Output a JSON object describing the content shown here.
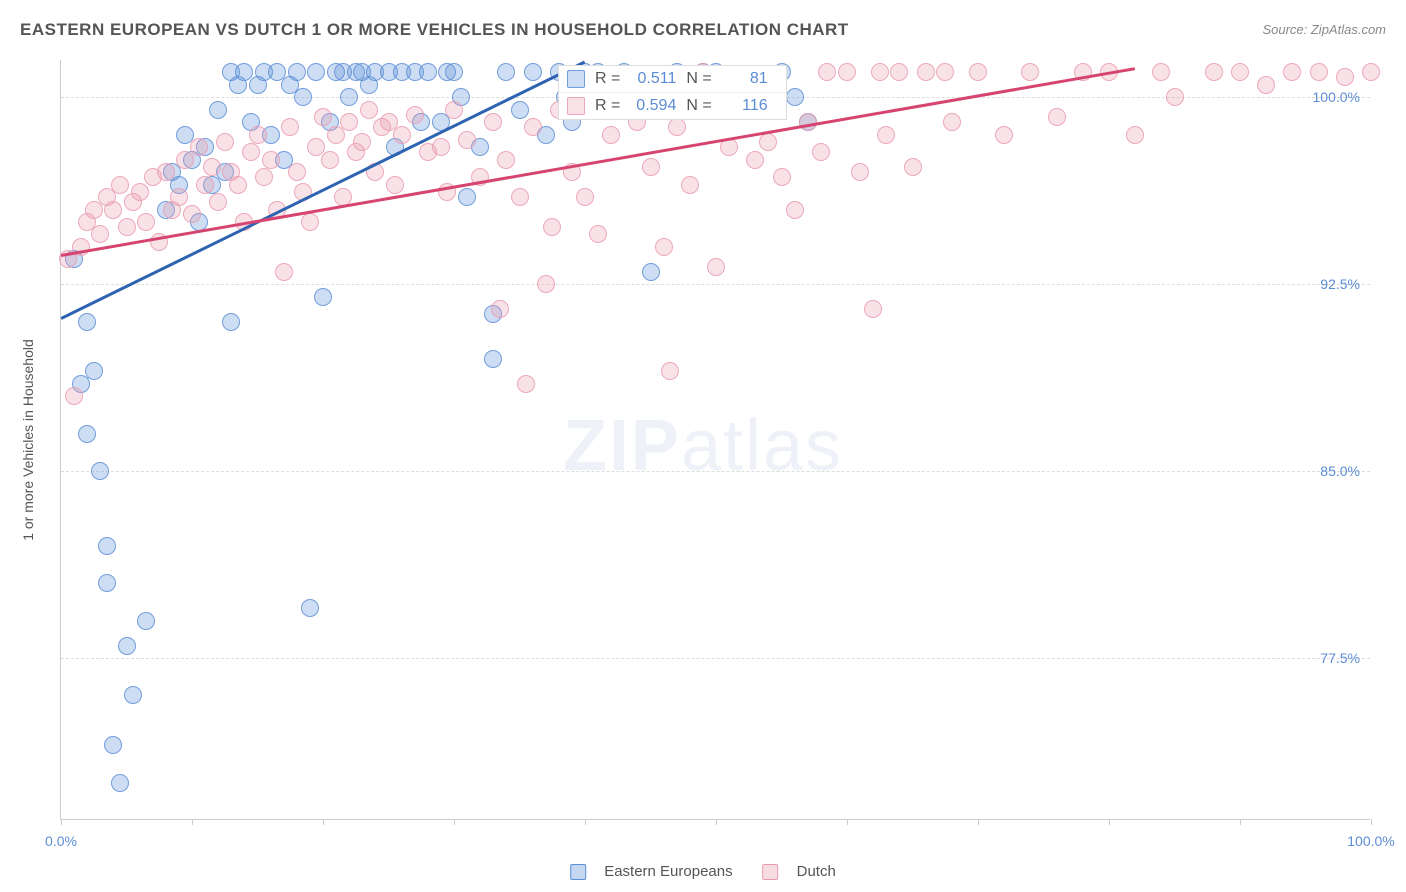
{
  "title": "EASTERN EUROPEAN VS DUTCH 1 OR MORE VEHICLES IN HOUSEHOLD CORRELATION CHART",
  "source_label": "Source: ZipAtlas.com",
  "y_axis_label": "1 or more Vehicles in Household",
  "watermark_bold": "ZIP",
  "watermark_light": "atlas",
  "chart": {
    "type": "scatter",
    "xlim": [
      0,
      100
    ],
    "ylim": [
      71,
      101.5
    ],
    "y_ticks": [
      77.5,
      85.0,
      92.5,
      100.0
    ],
    "y_tick_labels": [
      "77.5%",
      "85.0%",
      "92.5%",
      "100.0%"
    ],
    "x_ticks": [
      0,
      10,
      20,
      30,
      40,
      50,
      60,
      70,
      80,
      90,
      100
    ],
    "x_tick_labels_shown": {
      "0": "0.0%",
      "100": "100.0%"
    },
    "background_color": "#ffffff",
    "grid_color": "#dddddd",
    "axis_color": "#cccccc",
    "tick_label_color": "#5b8dd6",
    "point_radius": 9,
    "point_opacity": 0.45,
    "series": [
      {
        "name": "Eastern Europeans",
        "color": "#5b8dd6",
        "fill": "rgba(91,141,214,0.30)",
        "stroke": "rgba(91,141,214,0.8)",
        "R": "0.511",
        "N": "81",
        "trend": {
          "x1": 0,
          "y1": 91.2,
          "x2": 40,
          "y2": 101.5,
          "color": "#2d63b0",
          "width": 2.5
        },
        "points": [
          [
            1,
            93.5
          ],
          [
            1.5,
            88.5
          ],
          [
            2,
            91
          ],
          [
            2,
            86.5
          ],
          [
            2.5,
            89
          ],
          [
            3,
            85
          ],
          [
            3.5,
            82
          ],
          [
            3.5,
            80.5
          ],
          [
            4,
            74
          ],
          [
            4.5,
            72.5
          ],
          [
            5,
            78
          ],
          [
            5.5,
            76
          ],
          [
            6.5,
            79
          ],
          [
            8,
            95.5
          ],
          [
            8.5,
            97
          ],
          [
            9,
            96.5
          ],
          [
            9.5,
            98.5
          ],
          [
            10,
            97.5
          ],
          [
            10.5,
            95
          ],
          [
            11,
            98
          ],
          [
            11.5,
            96.5
          ],
          [
            12,
            99.5
          ],
          [
            12.5,
            97
          ],
          [
            13,
            91
          ],
          [
            13,
            101
          ],
          [
            13.5,
            100.5
          ],
          [
            14,
            101
          ],
          [
            14.5,
            99
          ],
          [
            15,
            100.5
          ],
          [
            15.5,
            101
          ],
          [
            16,
            98.5
          ],
          [
            16.5,
            101
          ],
          [
            17,
            97.5
          ],
          [
            17.5,
            100.5
          ],
          [
            18,
            101
          ],
          [
            18.5,
            100
          ],
          [
            19,
            79.5
          ],
          [
            19.5,
            101
          ],
          [
            20,
            92
          ],
          [
            20.5,
            99
          ],
          [
            21,
            101
          ],
          [
            21.5,
            101
          ],
          [
            22,
            100
          ],
          [
            22.5,
            101
          ],
          [
            23,
            101
          ],
          [
            23.5,
            100.5
          ],
          [
            24,
            101
          ],
          [
            25,
            101
          ],
          [
            25.5,
            98
          ],
          [
            26,
            101
          ],
          [
            27,
            101
          ],
          [
            27.5,
            99
          ],
          [
            28,
            101
          ],
          [
            29,
            99
          ],
          [
            29.5,
            101
          ],
          [
            30,
            101
          ],
          [
            30.5,
            100
          ],
          [
            31,
            96
          ],
          [
            32,
            98
          ],
          [
            33,
            89.5
          ],
          [
            33,
            91.3
          ],
          [
            34,
            101
          ],
          [
            35,
            99.5
          ],
          [
            36,
            101
          ],
          [
            37,
            98.5
          ],
          [
            38,
            101
          ],
          [
            38.5,
            100
          ],
          [
            39,
            99
          ],
          [
            40,
            101
          ],
          [
            41,
            101
          ],
          [
            42,
            100.5
          ],
          [
            43,
            101
          ],
          [
            45,
            93
          ],
          [
            47,
            101
          ],
          [
            49,
            101
          ],
          [
            49,
            100.5
          ],
          [
            50,
            101
          ],
          [
            50.5,
            100
          ],
          [
            55,
            101
          ],
          [
            56,
            100
          ],
          [
            57,
            99
          ]
        ]
      },
      {
        "name": "Dutch",
        "color": "#e89bb0",
        "fill": "rgba(232,155,176,0.30)",
        "stroke": "rgba(232,155,176,0.8)",
        "R": "0.594",
        "N": "116",
        "trend": {
          "x1": 0,
          "y1": 93.7,
          "x2": 82,
          "y2": 101.2,
          "color": "#d6456f",
          "width": 2.5
        },
        "points": [
          [
            0.5,
            93.5
          ],
          [
            1,
            88
          ],
          [
            1.5,
            94
          ],
          [
            2,
            95
          ],
          [
            2.5,
            95.5
          ],
          [
            3,
            94.5
          ],
          [
            3.5,
            96
          ],
          [
            4,
            95.5
          ],
          [
            4.5,
            96.5
          ],
          [
            5,
            94.8
          ],
          [
            5.5,
            95.8
          ],
          [
            6,
            96.2
          ],
          [
            6.5,
            95
          ],
          [
            7,
            96.8
          ],
          [
            7.5,
            94.2
          ],
          [
            8,
            97
          ],
          [
            8.5,
            95.5
          ],
          [
            9,
            96
          ],
          [
            9.5,
            97.5
          ],
          [
            10,
            95.3
          ],
          [
            10.5,
            98
          ],
          [
            11,
            96.5
          ],
          [
            11.5,
            97.2
          ],
          [
            12,
            95.8
          ],
          [
            12.5,
            98.2
          ],
          [
            13,
            97
          ],
          [
            13.5,
            96.5
          ],
          [
            14,
            95
          ],
          [
            14.5,
            97.8
          ],
          [
            15,
            98.5
          ],
          [
            15.5,
            96.8
          ],
          [
            16,
            97.5
          ],
          [
            16.5,
            95.5
          ],
          [
            17,
            93
          ],
          [
            17.5,
            98.8
          ],
          [
            18,
            97
          ],
          [
            18.5,
            96.2
          ],
          [
            19,
            95
          ],
          [
            19.5,
            98
          ],
          [
            20,
            99.2
          ],
          [
            20.5,
            97.5
          ],
          [
            21,
            98.5
          ],
          [
            21.5,
            96
          ],
          [
            22,
            99
          ],
          [
            22.5,
            97.8
          ],
          [
            23,
            98.2
          ],
          [
            23.5,
            99.5
          ],
          [
            24,
            97
          ],
          [
            24.5,
            98.8
          ],
          [
            25,
            99
          ],
          [
            25.5,
            96.5
          ],
          [
            26,
            98.5
          ],
          [
            27,
            99.3
          ],
          [
            28,
            97.8
          ],
          [
            29,
            98
          ],
          [
            29.5,
            96.2
          ],
          [
            30,
            99.5
          ],
          [
            31,
            98.3
          ],
          [
            32,
            96.8
          ],
          [
            33,
            99
          ],
          [
            33.5,
            91.5
          ],
          [
            34,
            97.5
          ],
          [
            35,
            96
          ],
          [
            35.5,
            88.5
          ],
          [
            36,
            98.8
          ],
          [
            37,
            92.5
          ],
          [
            37.5,
            94.8
          ],
          [
            38,
            99.5
          ],
          [
            39,
            97
          ],
          [
            40,
            96
          ],
          [
            41,
            94.5
          ],
          [
            42,
            98.5
          ],
          [
            43,
            99.8
          ],
          [
            44,
            99
          ],
          [
            45,
            97.2
          ],
          [
            46,
            94
          ],
          [
            46.5,
            89
          ],
          [
            47,
            98.8
          ],
          [
            48,
            96.5
          ],
          [
            49,
            101
          ],
          [
            50,
            93.2
          ],
          [
            51,
            98
          ],
          [
            52,
            99.5
          ],
          [
            53,
            97.5
          ],
          [
            54,
            98.2
          ],
          [
            55,
            96.8
          ],
          [
            56,
            95.5
          ],
          [
            57,
            99
          ],
          [
            58,
            97.8
          ],
          [
            58.5,
            101
          ],
          [
            60,
            101
          ],
          [
            61,
            97
          ],
          [
            62,
            91.5
          ],
          [
            62.5,
            101
          ],
          [
            63,
            98.5
          ],
          [
            64,
            101
          ],
          [
            65,
            97.2
          ],
          [
            66,
            101
          ],
          [
            67.5,
            101
          ],
          [
            68,
            99
          ],
          [
            70,
            101
          ],
          [
            72,
            98.5
          ],
          [
            74,
            101
          ],
          [
            76,
            99.2
          ],
          [
            78,
            101
          ],
          [
            80,
            101
          ],
          [
            82,
            98.5
          ],
          [
            84,
            101
          ],
          [
            85,
            100
          ],
          [
            88,
            101
          ],
          [
            90,
            101
          ],
          [
            92,
            100.5
          ],
          [
            94,
            101
          ],
          [
            96,
            101
          ],
          [
            98,
            100.8
          ],
          [
            100,
            101
          ]
        ]
      }
    ],
    "bottom_legend": [
      {
        "label": "Eastern Europeans",
        "fill": "rgba(91,141,214,0.35)",
        "stroke": "#5b8dd6"
      },
      {
        "label": "Dutch",
        "fill": "rgba(232,155,176,0.35)",
        "stroke": "#e89bb0"
      }
    ]
  }
}
